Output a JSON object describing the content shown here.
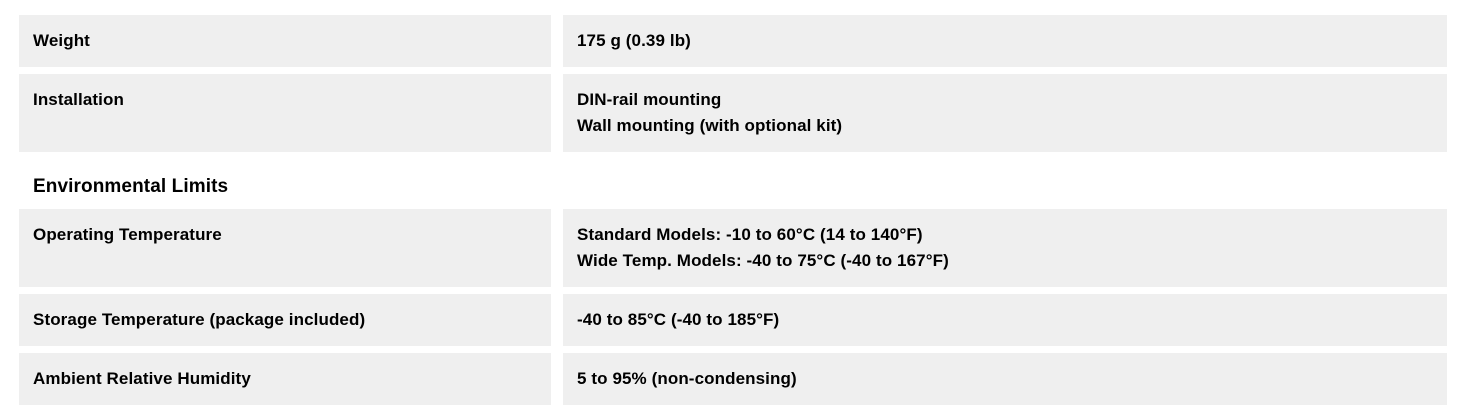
{
  "colors": {
    "page_bg": "#ffffff",
    "row_bg": "#efefef",
    "text": "#000000"
  },
  "sections": [
    {
      "rows": [
        {
          "label": "Weight",
          "values": [
            "175 g (0.39 lb)"
          ]
        },
        {
          "label": "Installation",
          "values": [
            "DIN-rail mounting",
            "Wall mounting (with optional kit)"
          ]
        }
      ]
    },
    {
      "title": "Environmental Limits",
      "rows": [
        {
          "label": "Operating Temperature",
          "values": [
            "Standard Models: -10 to 60°C (14 to 140°F)",
            "Wide Temp. Models: -40 to 75°C (-40 to 167°F)"
          ]
        },
        {
          "label": "Storage Temperature (package included)",
          "values": [
            "-40 to 85°C (-40 to 185°F)"
          ]
        },
        {
          "label": "Ambient Relative Humidity",
          "values": [
            "5 to 95% (non-condensing)"
          ]
        }
      ]
    }
  ]
}
